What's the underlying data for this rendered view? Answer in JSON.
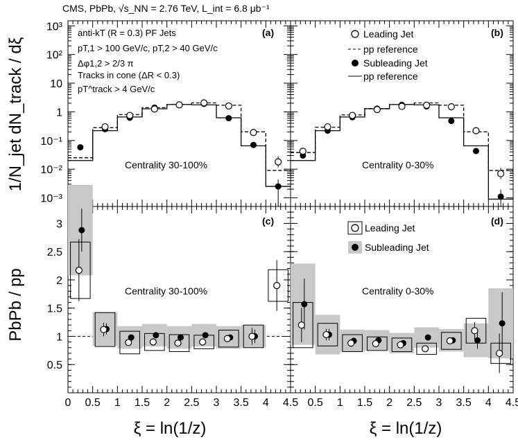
{
  "header": {
    "title": "CMS, PbPb, √s_NN = 2.76 TeV, L_int = 6.8 μb⁻¹"
  },
  "axes": {
    "xlabel": "ξ = ln(1/z)",
    "ylabel_top": "1/N_jet dN_track / dξ",
    "ylabel_bottom": "PbPb / pp",
    "x_ticks": [
      "0",
      "0.5",
      "1",
      "1.5",
      "2",
      "2.5",
      "3",
      "3.5",
      "4",
      "4.5"
    ],
    "x_ticks_right": [
      "0.5",
      "1",
      "1.5",
      "2",
      "2.5",
      "3",
      "3.5",
      "4",
      "4.5"
    ],
    "y_ticks_top": [
      "10³",
      "10²",
      "10",
      "1",
      "10⁻¹",
      "10⁻²",
      "10⁻³"
    ],
    "y_ticks_bottom": [
      "0.5",
      "1",
      "1.5",
      "2",
      "2.5",
      "3"
    ]
  },
  "panel_labels": {
    "a": "(a)",
    "b": "(b)",
    "c": "(c)",
    "d": "(d)"
  },
  "cuts": [
    "anti-kT (R = 0.3) PF Jets",
    "pT,1 > 100 GeV/c, pT,2 > 40 GeV/c",
    "Δφ1,2 > 2/3 π",
    "Tracks in cone (ΔR < 0.3)",
    "pT^track > 4 GeV/c"
  ],
  "legend_top": {
    "leading": "Leading Jet",
    "pp_dashed": "pp reference",
    "subleading": "Subleading Jet",
    "pp_solid": "pp reference"
  },
  "legend_bottom": {
    "leading": "Leading Jet",
    "subleading": "Subleading Jet"
  },
  "centrality": {
    "a": "Centrality 30-100%",
    "b": "Centrality 0-30%",
    "c": "Centrality 30-100%",
    "d": "Centrality 0-30%"
  },
  "chart_data": [
    {
      "panel": "a",
      "type": "scatter",
      "x": [
        0.25,
        0.75,
        1.25,
        1.75,
        2.25,
        2.75,
        3.25,
        3.75,
        4.25
      ],
      "series": [
        {
          "name": "Leading Jet",
          "values": [
            null,
            0.3,
            0.75,
            1.25,
            1.75,
            2.05,
            1.6,
            0.19,
            0.018
          ]
        },
        {
          "name": "pp reference (dashed)",
          "values": [
            0.025,
            0.28,
            0.8,
            1.4,
            1.8,
            2.05,
            1.7,
            0.2,
            0.009
          ]
        },
        {
          "name": "Subleading Jet",
          "values": [
            0.058,
            0.25,
            0.62,
            1.4,
            1.8,
            1.9,
            0.6,
            0.07,
            0.0025
          ]
        },
        {
          "name": "pp reference (solid)",
          "values": [
            0.02,
            0.22,
            0.66,
            1.28,
            1.8,
            1.75,
            0.62,
            0.065,
            0.0025
          ]
        }
      ],
      "xlim": [
        0,
        4.5
      ],
      "ylim_log": [
        0.0005,
        1500
      ]
    },
    {
      "panel": "b",
      "type": "scatter",
      "x": [
        0.25,
        0.75,
        1.25,
        1.75,
        2.25,
        2.75,
        3.25,
        3.75,
        4.25
      ],
      "series": [
        {
          "name": "Leading Jet",
          "values": [
            0.042,
            0.3,
            0.75,
            1.2,
            1.55,
            1.7,
            1.5,
            0.22,
            0.007
          ]
        },
        {
          "name": "pp reference (dashed)",
          "values": [
            0.038,
            0.29,
            0.78,
            1.3,
            1.8,
            2.05,
            1.7,
            0.2,
            0.009
          ]
        },
        {
          "name": "Subleading Jet",
          "values": [
            0.03,
            0.22,
            0.65,
            1.3,
            1.75,
            1.55,
            0.48,
            0.043,
            0.0011
          ]
        },
        {
          "name": "pp reference (solid)",
          "values": [
            0.02,
            0.22,
            0.66,
            1.28,
            1.8,
            1.75,
            0.62,
            0.065,
            0.0009
          ]
        }
      ],
      "xlim": [
        0,
        4.5
      ],
      "ylim_log": [
        0.0005,
        1500
      ]
    },
    {
      "panel": "c",
      "type": "scatter",
      "x": [
        0.25,
        0.75,
        1.25,
        1.75,
        2.25,
        2.75,
        3.25,
        3.75,
        4.25
      ],
      "series": [
        {
          "name": "Leading Jet",
          "values": [
            2.17,
            1.12,
            0.89,
            0.9,
            0.88,
            0.9,
            0.96,
            1.0,
            1.9
          ],
          "err": [
            0.55,
            0.12,
            0.05,
            0.04,
            0.04,
            0.04,
            0.05,
            0.15,
            0.45
          ],
          "sys": [
            0.5,
            0.3,
            0.2,
            0.15,
            0.15,
            0.12,
            0.15,
            0.2,
            0.28
          ]
        },
        {
          "name": "Subleading Jet",
          "values": [
            2.88,
            1.13,
            0.98,
            1.02,
            0.98,
            1.02,
            0.98,
            1.0,
            null
          ],
          "err": [
            0.38,
            0.1,
            0.05,
            0.04,
            0.04,
            0.04,
            0.05,
            0.12,
            null
          ],
          "sys": [
            0.8,
            0.3,
            0.2,
            0.2,
            0.2,
            0.2,
            0.2,
            0.2,
            null
          ]
        }
      ],
      "xlim": [
        0,
        4.5
      ],
      "ylim": [
        0,
        3.3
      ]
    },
    {
      "panel": "d",
      "type": "scatter",
      "x": [
        0.25,
        0.75,
        1.25,
        1.75,
        2.25,
        2.75,
        3.25,
        3.75,
        4.25
      ],
      "series": [
        {
          "name": "Leading Jet",
          "values": [
            1.2,
            1.03,
            0.88,
            0.87,
            0.85,
            0.78,
            0.92,
            1.1,
            0.7
          ],
          "err": [
            0.3,
            0.1,
            0.05,
            0.04,
            0.04,
            0.04,
            0.05,
            0.15,
            0.35
          ],
          "sys": [
            0.4,
            0.2,
            0.15,
            0.12,
            0.12,
            0.1,
            0.15,
            0.22,
            0.18
          ]
        },
        {
          "name": "Subleading Jet",
          "values": [
            1.57,
            1.03,
            0.92,
            0.93,
            0.88,
            0.98,
            0.93,
            0.93,
            1.23
          ],
          "err": [
            0.45,
            0.1,
            0.05,
            0.04,
            0.04,
            0.04,
            0.05,
            0.15,
            0.55
          ],
          "sys": [
            0.72,
            0.35,
            0.2,
            0.18,
            0.18,
            0.18,
            0.2,
            0.3,
            0.62
          ]
        }
      ],
      "xlim": [
        0,
        4.5
      ],
      "ylim": [
        0,
        3.3
      ]
    }
  ]
}
